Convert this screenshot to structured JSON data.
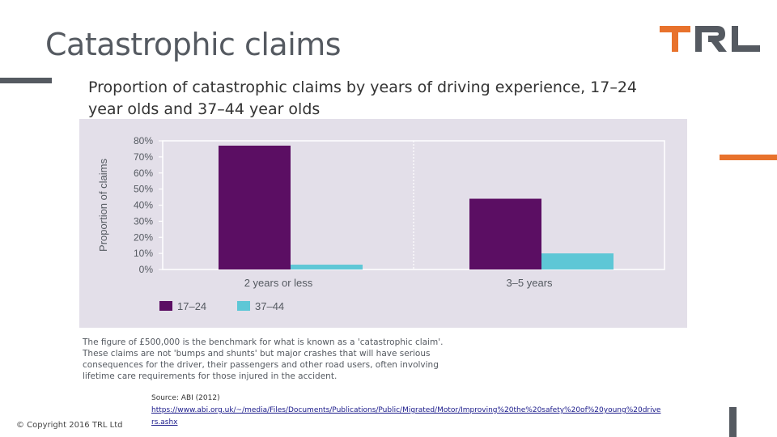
{
  "slide": {
    "title": "Catastrophic claims",
    "subtitle": "Proportion of catastrophic claims by years of driving experience, 17–24 year olds and 37–44 year olds",
    "note": "The figure of £500,000 is the benchmark for what is known as a 'catastrophic claim'. These claims are not 'bumps and shunts' but major crashes that will have serious consequences for the driver, their passengers and other road users, often involving lifetime care requirements for those injured in the accident.",
    "source_label": "Source: ABI (2012)",
    "source_url": "https://www.abi.org.uk/~/media/Files/Documents/Publications/Public/Migrated/Motor/Improving%20the%20safety%20of%20young%20drivers.ashx",
    "copyright": "© Copyright 2016 TRL Ltd",
    "logo_text": "TRL"
  },
  "colors": {
    "accent_orange": "#e8722c",
    "brand_grey": "#555a61",
    "series_17_24": "#5b0e63",
    "series_37_44": "#5ec7d6",
    "panel_bg": "#e3dfe9"
  },
  "chart_data": {
    "type": "bar",
    "title": "",
    "xlabel": "",
    "ylabel": "Proportion of claims",
    "ylim": [
      0,
      80
    ],
    "y_tick_labels": [
      "0%",
      "10%",
      "20%",
      "30%",
      "40%",
      "50%",
      "60%",
      "70%",
      "80%"
    ],
    "categories": [
      "2 years or less",
      "3–5 years"
    ],
    "series": [
      {
        "name": "17–24",
        "values": [
          77,
          44
        ],
        "color": "#5b0e63"
      },
      {
        "name": "37–44",
        "values": [
          3,
          10
        ],
        "color": "#5ec7d6"
      }
    ],
    "legend_position": "bottom-left",
    "grid": false
  }
}
